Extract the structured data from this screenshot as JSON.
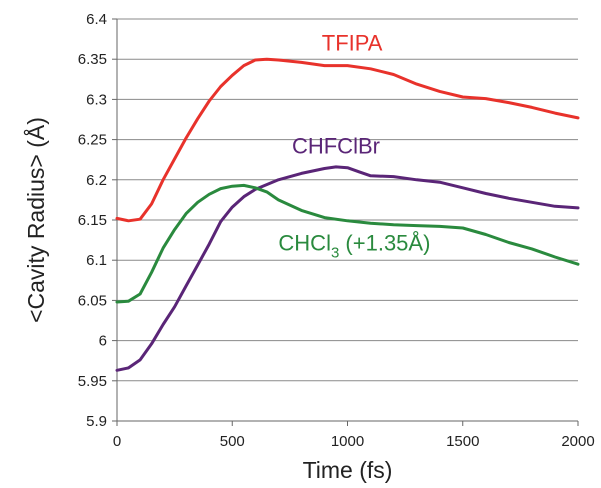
{
  "chart_data": {
    "type": "line",
    "title": "",
    "xlabel": "Time (fs)",
    "ylabel": "<Cavity Radius> (Å)",
    "xlim": [
      0,
      2000
    ],
    "ylim": [
      5.9,
      6.4
    ],
    "xticks": [
      "0",
      "500",
      "1000",
      "1500",
      "2000"
    ],
    "yticks": [
      "5.9",
      "5.95",
      "6",
      "6.05",
      "6.1",
      "6.15",
      "6.2",
      "6.25",
      "6.3",
      "6.35",
      "6.4"
    ],
    "grid": "horizontal",
    "series": [
      {
        "name": "TFIPA",
        "color": "#e8322b",
        "x": [
          0,
          50,
          100,
          150,
          200,
          250,
          300,
          350,
          400,
          450,
          500,
          550,
          600,
          650,
          700,
          800,
          900,
          1000,
          1100,
          1200,
          1300,
          1400,
          1500,
          1600,
          1700,
          1800,
          1900,
          2000
        ],
        "y": [
          6.152,
          6.149,
          6.151,
          6.17,
          6.2,
          6.226,
          6.252,
          6.276,
          6.298,
          6.316,
          6.33,
          6.342,
          6.349,
          6.35,
          6.349,
          6.346,
          6.342,
          6.342,
          6.338,
          6.331,
          6.319,
          6.31,
          6.303,
          6.301,
          6.296,
          6.29,
          6.283,
          6.277
        ]
      },
      {
        "name": "CHFClBr",
        "color": "#5a2577",
        "x": [
          0,
          50,
          100,
          150,
          200,
          250,
          300,
          350,
          400,
          450,
          500,
          550,
          600,
          700,
          800,
          900,
          950,
          1000,
          1050,
          1100,
          1200,
          1300,
          1400,
          1500,
          1600,
          1700,
          1800,
          1900,
          2000
        ],
        "y": [
          5.963,
          5.966,
          5.976,
          5.996,
          6.02,
          6.042,
          6.068,
          6.094,
          6.12,
          6.148,
          6.166,
          6.179,
          6.188,
          6.2,
          6.208,
          6.214,
          6.216,
          6.215,
          6.21,
          6.205,
          6.204,
          6.2,
          6.197,
          6.19,
          6.183,
          6.177,
          6.172,
          6.167,
          6.165
        ]
      },
      {
        "name": "CHCl3 (+1.35Å)",
        "color": "#2a8a3e",
        "x": [
          0,
          50,
          100,
          150,
          200,
          250,
          300,
          350,
          400,
          450,
          500,
          550,
          600,
          650,
          700,
          800,
          900,
          1000,
          1100,
          1200,
          1300,
          1400,
          1500,
          1600,
          1700,
          1800,
          1900,
          2000
        ],
        "y": [
          6.048,
          6.049,
          6.058,
          6.085,
          6.115,
          6.138,
          6.158,
          6.172,
          6.182,
          6.189,
          6.192,
          6.193,
          6.19,
          6.185,
          6.175,
          6.162,
          6.153,
          6.149,
          6.146,
          6.144,
          6.143,
          6.142,
          6.14,
          6.132,
          6.122,
          6.114,
          6.104,
          6.095
        ]
      }
    ],
    "annotations": [
      {
        "text": "TFIPA",
        "series": 0,
        "at_x": 1020,
        "at_y": 6.361
      },
      {
        "text": "CHFClBr",
        "series": 1,
        "at_x": 950,
        "at_y": 6.233
      },
      {
        "text": "CHCl3 (+1.35Å)",
        "series": 2,
        "at_x": 1030,
        "at_y": 6.112,
        "main": "CHCl",
        "sub": "3",
        "suffix": " (+1.35Å)"
      }
    ]
  }
}
